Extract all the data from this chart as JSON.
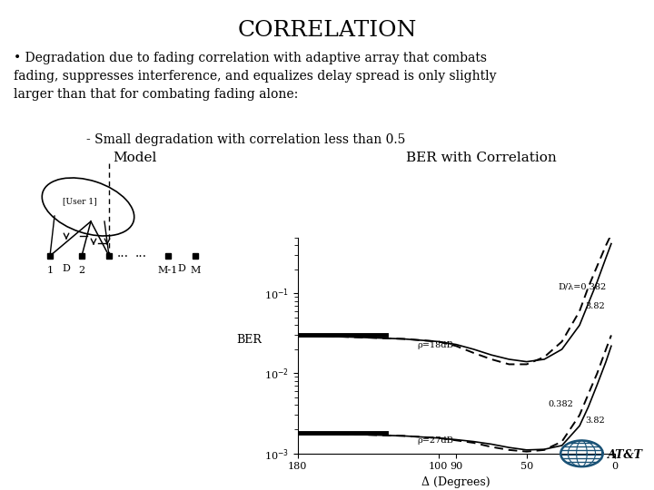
{
  "title": "CORRELATION",
  "bullet_text": "• Degradation due to fading correlation with adaptive array that combats\nfading, suppresses interference, and equalizes delay spread is only slightly\nlarger than that for combating fading alone:",
  "sub_bullet": "- Small degradation with correlation less than 0.5",
  "model_label": "Model",
  "ber_label": "BER with Correlation",
  "bg_color": "#ffffff",
  "text_color": "#000000",
  "font_family": "serif",
  "ber_xlabel": "Δ (Degrees)",
  "ber_ylabel": "BER",
  "att_blue": "#1a5276",
  "delta_fine": [
    180,
    160,
    140,
    120,
    110,
    100,
    90,
    80,
    70,
    60,
    50,
    40,
    30,
    20,
    15,
    10,
    5,
    2
  ],
  "ber_18_dashed": [
    0.03,
    0.029,
    0.028,
    0.027,
    0.026,
    0.025,
    0.022,
    0.018,
    0.015,
    0.013,
    0.013,
    0.016,
    0.025,
    0.06,
    0.12,
    0.22,
    0.4,
    0.55
  ],
  "ber_18_solid": [
    0.03,
    0.029,
    0.028,
    0.027,
    0.026,
    0.025,
    0.023,
    0.02,
    0.017,
    0.015,
    0.014,
    0.015,
    0.02,
    0.04,
    0.075,
    0.14,
    0.28,
    0.42
  ],
  "ber_27_dashed": [
    0.0018,
    0.00175,
    0.0017,
    0.00165,
    0.0016,
    0.00155,
    0.00145,
    0.00135,
    0.0012,
    0.0011,
    0.00105,
    0.0011,
    0.0014,
    0.003,
    0.0055,
    0.01,
    0.02,
    0.03
  ],
  "ber_27_solid": [
    0.0018,
    0.00175,
    0.0017,
    0.00165,
    0.0016,
    0.00155,
    0.00148,
    0.0014,
    0.0013,
    0.00118,
    0.0011,
    0.00112,
    0.00125,
    0.0022,
    0.0038,
    0.0072,
    0.014,
    0.022
  ]
}
